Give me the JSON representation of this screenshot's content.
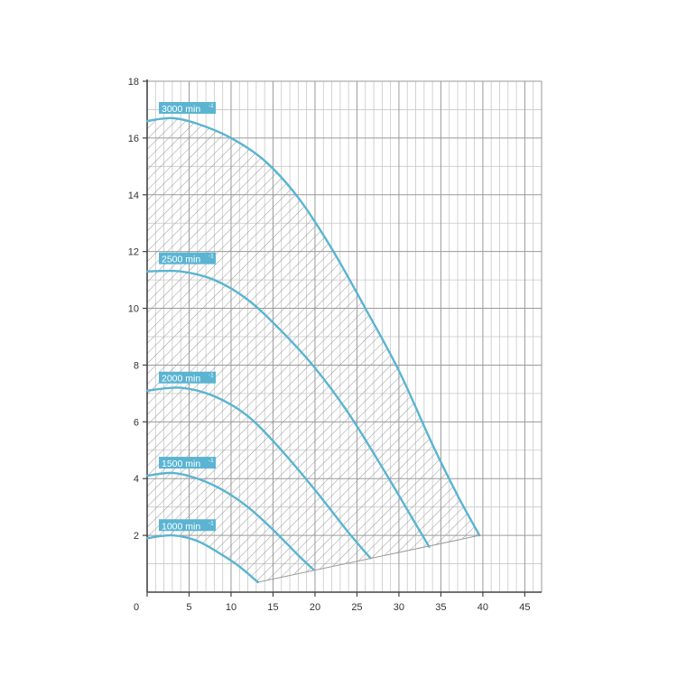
{
  "chart_data": {
    "type": "line",
    "title": "",
    "xlabel": "",
    "ylabel": "",
    "xlim": [
      0,
      47
    ],
    "ylim": [
      0,
      18
    ],
    "x_ticks": [
      "0",
      "5",
      "10",
      "15",
      "20",
      "25",
      "30",
      "35",
      "40",
      "45"
    ],
    "x_tick_values": [
      0,
      5,
      10,
      15,
      20,
      25,
      30,
      35,
      40,
      45
    ],
    "y_ticks": [
      "2",
      "4",
      "6",
      "8",
      "10",
      "12",
      "14",
      "16",
      "18"
    ],
    "y_tick_values": [
      2,
      4,
      6,
      8,
      10,
      12,
      14,
      16,
      18
    ],
    "grid": true,
    "curve_color": "#5ab4d2",
    "label_bg_color": "#5ab4d2",
    "hatch_color": "#999999",
    "series": [
      {
        "name": "1000 min",
        "sup": "-1",
        "x": [
          0,
          3,
          6,
          9,
          11,
          13.2
        ],
        "y": [
          1.9,
          2.0,
          1.8,
          1.3,
          0.9,
          0.35
        ]
      },
      {
        "name": "1500 min",
        "sup": "-1",
        "x": [
          0,
          3,
          6,
          9,
          12,
          15,
          18,
          19.8
        ],
        "y": [
          4.1,
          4.2,
          4.0,
          3.6,
          3.0,
          2.2,
          1.3,
          0.8
        ]
      },
      {
        "name": "2000 min",
        "sup": "-1",
        "x": [
          0,
          4,
          8,
          12,
          16,
          20,
          24,
          26.6
        ],
        "y": [
          7.1,
          7.2,
          6.9,
          6.2,
          5.0,
          3.6,
          2.1,
          1.2
        ]
      },
      {
        "name": "2500 min",
        "sup": "-1",
        "x": [
          0,
          4,
          8,
          12,
          16,
          20,
          24,
          28,
          32,
          33.6
        ],
        "y": [
          11.3,
          11.3,
          11.0,
          10.3,
          9.2,
          7.9,
          6.3,
          4.4,
          2.4,
          1.6
        ]
      },
      {
        "name": "3000 min",
        "sup": "-1",
        "x": [
          0,
          3,
          6,
          10,
          14,
          18,
          22,
          26,
          30,
          34,
          37,
          39.6
        ],
        "y": [
          16.6,
          16.7,
          16.5,
          16.0,
          15.2,
          13.9,
          12.1,
          10.0,
          7.8,
          5.2,
          3.4,
          2.0
        ]
      }
    ],
    "operating_region_boundary": {
      "x": [
        13.2,
        39.6
      ],
      "y": [
        0.35,
        2.0
      ]
    }
  }
}
